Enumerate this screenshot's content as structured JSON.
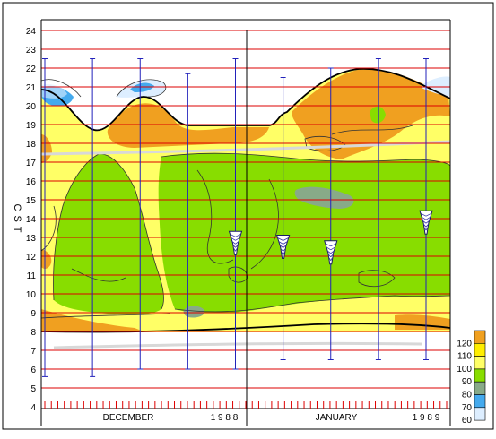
{
  "chart_data": {
    "type": "heatmap",
    "subtype": "time-height contour plot with whisker bars",
    "ylabel": "C S T",
    "yticks": [
      4,
      5,
      6,
      7,
      8,
      9,
      10,
      11,
      12,
      13,
      14,
      15,
      16,
      17,
      18,
      19,
      20,
      21,
      22,
      23,
      24
    ],
    "ylim": [
      4,
      24.6
    ],
    "x_months": [
      {
        "label": "DECEMBER",
        "year": "1 9 8 8"
      },
      {
        "label": "JANUARY",
        "year": "1 9 8 9"
      }
    ],
    "legend": {
      "placement": "bottom-right",
      "levels": [
        "120",
        "110",
        "100",
        "90",
        "80",
        "70",
        "60"
      ],
      "colors": [
        "#f0a020",
        "#ffee00",
        "#ffff66",
        "#88dd00",
        "#88aa88",
        "#44aaee",
        "#ddeeff"
      ]
    },
    "colors": {
      "gridline": "#dd0000",
      "whisker": "#2222bb",
      "contour": "#222222",
      "divider": "#000000"
    },
    "whiskers": [
      {
        "low": 5.6,
        "high": 22.5
      },
      {
        "low": 5.6,
        "high": 22.5
      },
      {
        "low": 6.0,
        "high": 22.5
      },
      {
        "low": 6.0,
        "high": 21.7
      },
      {
        "low": 6.0,
        "high": 22.5
      },
      {
        "low": 6.5,
        "high": 21.5
      },
      {
        "low": 6.5,
        "high": 22.0
      },
      {
        "low": 6.5,
        "high": 22.5
      },
      {
        "low": 6.5,
        "high": 22.5
      }
    ],
    "markers": [
      {
        "whisker": 4,
        "y": 12.7
      },
      {
        "whisker": 5,
        "y": 12.5
      },
      {
        "whisker": 6,
        "y": 12.2
      },
      {
        "whisker": 8,
        "y": 13.8
      }
    ]
  }
}
